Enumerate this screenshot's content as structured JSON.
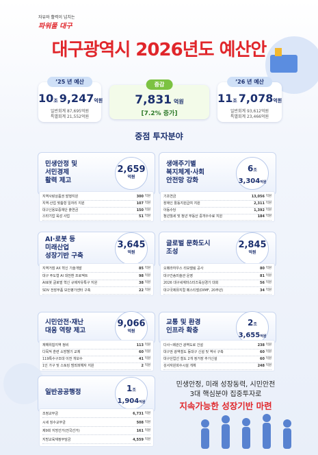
{
  "header": {
    "slogan": "자유와 활력이 넘치는",
    "brand": "파워풀 대구",
    "title": "대구광역시 2026년도 예산안"
  },
  "summary": {
    "prev": {
      "label": "’25 년 예산",
      "amount": [
        {
          "num": "10",
          "unit": "조"
        },
        {
          "num": "9,247",
          "unit": "억원"
        }
      ],
      "lines": [
        "일반회계 87,695억원",
        "특별회계 21,552억원"
      ]
    },
    "change": {
      "label": "증감",
      "num": "7,831",
      "unit": "억원",
      "note": "[7.2% 증가]"
    },
    "next": {
      "label": "’26 년 예산",
      "amount": [
        {
          "num": "11",
          "unit": "조"
        },
        {
          "num": "7,078",
          "unit": "억원"
        }
      ],
      "lines": [
        "일반회계 93,612억원",
        "특별회계 23,466억원"
      ]
    }
  },
  "section_title": "중점 투자분야",
  "cards": [
    {
      "title": [
        "민생안정 및",
        "서민경제",
        "활력 제고"
      ],
      "amount": [
        {
          "num": "2,659",
          "unit": "억원"
        }
      ],
      "items": [
        {
          "name": "지역사랑상품권 발행지원",
          "value": "300",
          "unit": "억원"
        },
        {
          "name": "지역·산업 맞춤형 일자리 지원",
          "value": "107",
          "unit": "억원"
        },
        {
          "name": "대구신용보증재단 출연금",
          "value": "150",
          "unit": "억원"
        },
        {
          "name": "스타기업 육성 사업",
          "value": "51",
          "unit": "억원"
        }
      ]
    },
    {
      "title": [
        "생애주기별",
        "복지체계·사회",
        "안전망 강화"
      ],
      "amount": [
        {
          "num": "6",
          "unit": "조"
        },
        {
          "num": "3,304",
          "unit": "억원"
        }
      ],
      "items": [
        {
          "name": "기초연금",
          "value": "13,056",
          "unit": "억원"
        },
        {
          "name": "장애인 활동지원급여 지원",
          "value": "2,311",
          "unit": "억원"
        },
        {
          "name": "아동수당",
          "value": "1,392",
          "unit": "억원"
        },
        {
          "name": "청년월세 및 청년 부동산 중개수수료 지원",
          "value": "184",
          "unit": "억원"
        }
      ]
    },
    {
      "title": [
        "AI·로봇 등",
        "미래산업",
        "성장기반 구축"
      ],
      "amount": [
        {
          "num": "3,645",
          "unit": "억원"
        }
      ],
      "items": [
        {
          "name": "지역거점 AX 혁신 기술개발",
          "value": "85",
          "unit": "억원"
        },
        {
          "name": "대구 주도형 AI 대전환 프로젝트",
          "value": "98",
          "unit": "억원"
        },
        {
          "name": "AI로봇 글로벌 혁신 규제자유특구 지원",
          "value": "38",
          "unit": "억원"
        },
        {
          "name": "SDV 전장부품 보안평가센터 구축",
          "value": "22",
          "unit": "억원"
        }
      ]
    },
    {
      "title": [
        "글로벌 문화도시",
        "조성"
      ],
      "amount": [
        {
          "num": "2,845",
          "unit": "억원"
        }
      ],
      "items": [
        {
          "name": "오페라하우스 리모델링 공사",
          "value": "80",
          "unit": "억원"
        },
        {
          "name": "대구간송미술관 운영",
          "value": "81",
          "unit": "억원"
        },
        {
          "name": "2026 대구세계마스터즈육상경기 대회",
          "value": "56",
          "unit": "억원"
        },
        {
          "name": "대구국제뮤지컬 페스티벌(DIMF, 20주년)",
          "value": "34",
          "unit": "억원"
        }
      ]
    },
    {
      "title": [
        "시민안전·재난",
        "대응 역량 제고"
      ],
      "amount": [
        {
          "num": "9,066",
          "unit": "억원"
        }
      ],
      "items": [
        {
          "name": "재해위험지역 정비",
          "value": "113",
          "unit": "억원"
        },
        {
          "name": "다목적 훈련 소방헬기 교체",
          "value": "60",
          "unit": "억원"
        },
        {
          "name": "119특수구조대 이전 개보수",
          "value": "41",
          "unit": "억원"
        },
        {
          "name": "1인 가구 및 스토킹 범죄피해자 지원",
          "value": "2",
          "unit": "억원"
        }
      ]
    },
    {
      "title": [
        "교통 및 환경",
        "인프라 확충"
      ],
      "amount": [
        {
          "num": "2",
          "unit": "조"
        },
        {
          "num": "3,655",
          "unit": "억원"
        }
      ],
      "items": [
        {
          "name": "다사~왜관간 광역도로 건설",
          "value": "238",
          "unit": "억원"
        },
        {
          "name": "대구권 광역철도 동대구 신설 및 역사 구축",
          "value": "60",
          "unit": "억원"
        },
        {
          "name": "대구산업선 철도 2개 정거장 추가신설",
          "value": "60",
          "unit": "억원"
        },
        {
          "name": "성서자원회수시설 개체",
          "value": "248",
          "unit": "억원"
        }
      ]
    },
    {
      "title": [
        "일반공공행정"
      ],
      "amount": [
        {
          "num": "1",
          "unit": "조"
        },
        {
          "num": "1,904",
          "unit": "억원"
        }
      ],
      "items": [
        {
          "name": "조정교부금",
          "value": "6,731",
          "unit": "억원"
        },
        {
          "name": "시세 징수교부금",
          "value": "508",
          "unit": "억원"
        },
        {
          "name": "제9회 지방선거(전국선거)",
          "value": "161",
          "unit": "억원"
        },
        {
          "name": "지방교육재정부담금",
          "value": "4,559",
          "unit": "억원"
        }
      ]
    }
  ],
  "message": {
    "lines": [
      "민생안정, 미래 성장동력, 시민안전",
      "3대 핵심분야 집중투자로"
    ],
    "highlight": "지속가능한 성장기반 마련"
  }
}
